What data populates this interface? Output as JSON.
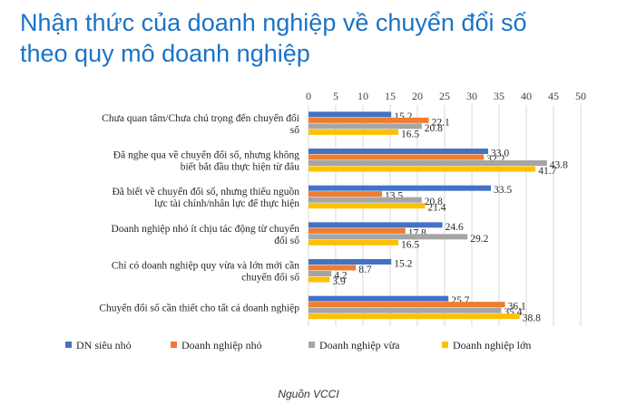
{
  "heading": {
    "line1": "Nhận thức của doanh nghiệp về chuyển đổi số",
    "line2": "theo quy mô doanh nghiệp"
  },
  "source": "Nguồn VCCI",
  "colors": {
    "series": [
      "#4472c4",
      "#ed7d31",
      "#a5a5a5",
      "#ffc000"
    ],
    "title": "#1a73c8",
    "grid": "#d9d9d9"
  },
  "chart_data": {
    "type": "bar",
    "orientation": "horizontal",
    "xlim": [
      0,
      50
    ],
    "xticks": [
      0,
      5,
      10,
      15,
      20,
      25,
      30,
      35,
      40,
      45,
      50
    ],
    "x_axis_position": "top",
    "grid": true,
    "legend_position": "bottom",
    "categories": [
      [
        "Chưa quan tâm/Chưa chú trọng đến chuyển đổi",
        "số"
      ],
      [
        "Đã nghe qua về chuyển đổi số, nhưng không",
        "biết bắt đầu thực hiện từ đâu"
      ],
      [
        "Đã biết về chuyển đổi số, nhưng thiếu nguồn",
        "lực tài chính/nhân lực để thực hiện"
      ],
      [
        "Doanh nghiệp nhỏ ít chịu tác động từ chuyển",
        "đổi số"
      ],
      [
        "Chỉ có doanh nghiệp quy vừa và lớn mới cần",
        "chuyển đổi số"
      ],
      [
        "Chuyển đổi số cần thiết cho tất cả doanh nghiệp"
      ]
    ],
    "series": [
      {
        "name": "DN siêu nhỏ",
        "values": [
          15.2,
          33.0,
          33.5,
          24.6,
          15.2,
          25.7
        ]
      },
      {
        "name": "Doanh nghiệp nhỏ",
        "values": [
          22.1,
          32.2,
          13.5,
          17.8,
          8.7,
          36.1
        ]
      },
      {
        "name": "Doanh nghiệp vừa",
        "values": [
          20.8,
          43.8,
          20.8,
          29.2,
          4.2,
          35.4
        ]
      },
      {
        "name": "Doanh nghiệp lớn",
        "values": [
          16.5,
          41.7,
          21.4,
          16.5,
          3.9,
          38.8
        ]
      }
    ]
  }
}
